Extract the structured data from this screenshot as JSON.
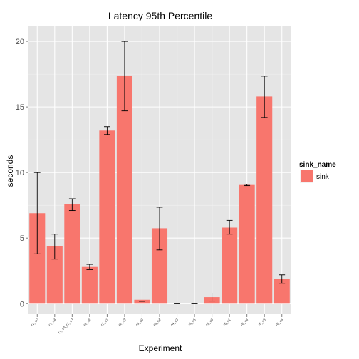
{
  "chart_data": {
    "type": "bar",
    "title": "Latency 95th Percentile",
    "xlabel": "Experiment",
    "ylabel": "seconds",
    "categories": [
      "r1_c0",
      "r1_c4",
      "r1_c4_r2_c3",
      "r1_c6",
      "r2_c1",
      "r2_c3",
      "r3_c0",
      "r3_c4",
      "r4_c3",
      "r4_c6",
      "r5_c0",
      "r6_c1",
      "r6_c4",
      "r6_c3",
      "r6_c6"
    ],
    "series": [
      {
        "name": "sink",
        "color": "#F8766D",
        "values": [
          6.9,
          4.4,
          7.6,
          2.8,
          13.2,
          17.4,
          0.3,
          5.75,
          0.0,
          0.0,
          0.5,
          5.8,
          9.05,
          15.8,
          1.9
        ],
        "error_low": [
          3.8,
          3.4,
          7.1,
          2.6,
          12.9,
          14.7,
          0.18,
          4.1,
          0.0,
          0.0,
          0.2,
          5.3,
          9.0,
          14.2,
          1.55
        ],
        "error_high": [
          10.0,
          5.3,
          8.0,
          3.0,
          13.5,
          20.0,
          0.42,
          7.35,
          0.0,
          0.0,
          0.8,
          6.35,
          9.1,
          17.35,
          2.2
        ]
      }
    ],
    "ylim": [
      -0.8,
      21.2
    ],
    "yticks": [
      0,
      5,
      10,
      15,
      20
    ],
    "grid": true,
    "legend": {
      "title": "sink_name",
      "position": "right"
    },
    "panel_background": "#E5E5E5",
    "grid_color": "#FFFFFF"
  }
}
